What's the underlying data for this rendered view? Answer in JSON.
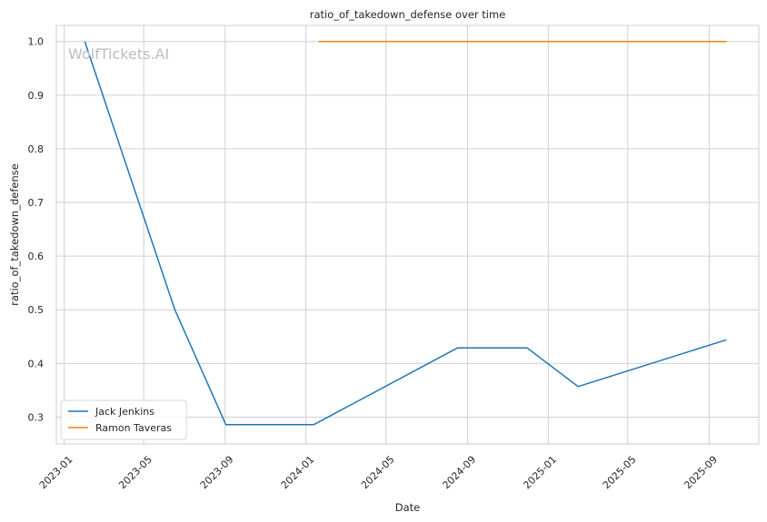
{
  "chart_data": {
    "type": "line",
    "title": "ratio_of_takedown_defense over time",
    "xlabel": "Date",
    "ylabel": "ratio_of_takedown_defense",
    "watermark": "WolfTickets.AI",
    "x_axis_type": "date",
    "xlim": [
      "2022-12-20",
      "2025-11-15"
    ],
    "ylim": [
      0.25,
      1.03
    ],
    "x_ticks": [
      "2023-01",
      "2023-05",
      "2023-09",
      "2024-01",
      "2024-05",
      "2024-09",
      "2025-01",
      "2025-05",
      "2025-09"
    ],
    "y_ticks": [
      0.3,
      0.4,
      0.5,
      0.6,
      0.7,
      0.8,
      0.9,
      1.0
    ],
    "y_tick_labels": [
      "0.3",
      "0.4",
      "0.5",
      "0.6",
      "0.7",
      "0.8",
      "0.9",
      "1.0"
    ],
    "grid": true,
    "legend_position": "lower-left",
    "series": [
      {
        "name": "Jack Jenkins",
        "color": "#1f77b4",
        "points": [
          {
            "x": "2023-02-01",
            "y": 1.0
          },
          {
            "x": "2023-06-17",
            "y": 0.5
          },
          {
            "x": "2023-09-02",
            "y": 0.286
          },
          {
            "x": "2024-01-13",
            "y": 0.286
          },
          {
            "x": "2024-08-17",
            "y": 0.429
          },
          {
            "x": "2024-11-30",
            "y": 0.429
          },
          {
            "x": "2025-02-15",
            "y": 0.357
          },
          {
            "x": "2025-09-27",
            "y": 0.444
          }
        ]
      },
      {
        "name": "Ramon Taveras",
        "color": "#ff7f0e",
        "points": [
          {
            "x": "2024-01-20",
            "y": 1.0
          },
          {
            "x": "2025-09-27",
            "y": 1.0
          }
        ]
      }
    ]
  }
}
